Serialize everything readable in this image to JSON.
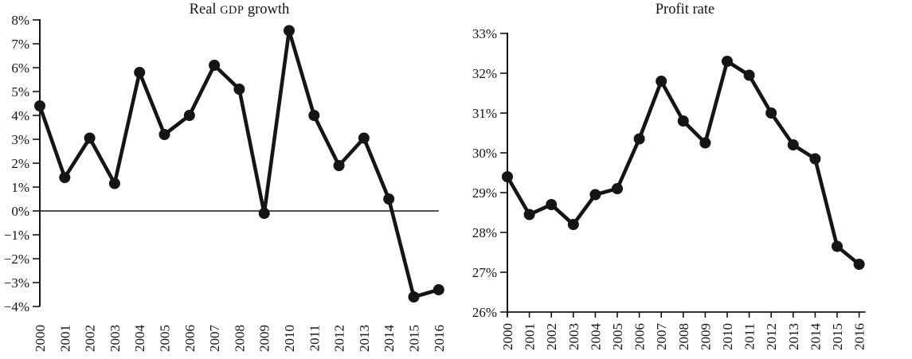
{
  "figure": {
    "background": "#ffffff",
    "ink_color": "#151515"
  },
  "chart_data": [
    {
      "type": "line",
      "title": "Real GDP growth",
      "categories": [
        "2000",
        "2001",
        "2002",
        "2003",
        "2004",
        "2005",
        "2006",
        "2007",
        "2008",
        "2009",
        "2010",
        "2011",
        "2012",
        "2013",
        "2014",
        "2015",
        "2016"
      ],
      "values": [
        4.4,
        1.4,
        3.05,
        1.15,
        5.8,
        3.2,
        4.0,
        6.1,
        5.1,
        -0.1,
        7.55,
        4.0,
        1.9,
        3.05,
        0.5,
        -3.6,
        -3.3
      ],
      "ylim": [
        -4,
        8
      ],
      "ytick_interval": 1,
      "ytick_format": "{v}%",
      "xlabel": "",
      "ylabel": "",
      "grid": false,
      "legend": null,
      "marker": "filled-circle",
      "line_color": "#151515",
      "zero_line": true,
      "bottom_axis": false,
      "x_tick_label_rotation": 90
    },
    {
      "type": "line",
      "title": "Profit rate",
      "categories": [
        "2000",
        "2001",
        "2002",
        "2003",
        "2004",
        "2005",
        "2006",
        "2007",
        "2008",
        "2009",
        "2010",
        "2011",
        "2012",
        "2013",
        "2014",
        "2015",
        "2016"
      ],
      "values": [
        29.4,
        28.45,
        28.7,
        28.2,
        28.95,
        29.1,
        30.35,
        31.8,
        30.8,
        30.25,
        32.3,
        31.95,
        31.0,
        30.2,
        29.85,
        27.65,
        27.2
      ],
      "ylim": [
        26,
        33
      ],
      "ytick_interval": 1,
      "ytick_format": "{v}%",
      "xlabel": "",
      "ylabel": "",
      "grid": false,
      "legend": null,
      "marker": "filled-circle",
      "line_color": "#151515",
      "zero_line": false,
      "bottom_axis": true,
      "x_tick_label_rotation": 90
    }
  ]
}
